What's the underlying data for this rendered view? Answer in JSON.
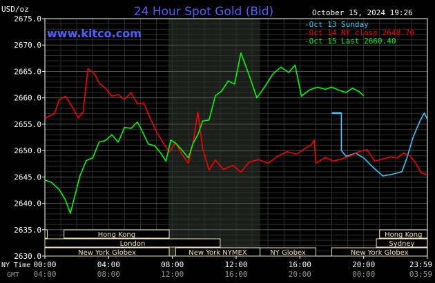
{
  "chart_data": {
    "type": "line",
    "title": "24 Hour Spot Gold (Bid)",
    "unit_label": "USD/oz",
    "watermark": "www.kitco.com",
    "timestamp": "October 15, 2024 19:26",
    "ylim": [
      2630,
      2675
    ],
    "y_ticks": [
      "2675.0",
      "2670.0",
      "2665.0",
      "2660.0",
      "2655.0",
      "2650.0",
      "2645.0",
      "2640.0",
      "2635.0",
      "2630.0"
    ],
    "x_axis": {
      "row1_label": "NY Time",
      "row2_label": "GMT",
      "ny_ticks": [
        "00:00",
        "04:00",
        "08:00",
        "12:00",
        "16:00",
        "20:00",
        "23:59"
      ],
      "gmt_ticks": [
        "04:00",
        "08:00",
        "12:00",
        "16:00",
        "20:00",
        "00:00",
        "03:59"
      ]
    },
    "shaded_session": {
      "from_hour": 7.75,
      "to_hour": 13.5
    },
    "legend": [
      {
        "label": "Oct 13 Sunday",
        "color": "#33ccff"
      },
      {
        "label": "Oct 14 NY close 2648.70",
        "color": "#ff0000"
      },
      {
        "label": "Oct 15 Last 2660.40",
        "color": "#00ff00"
      }
    ],
    "series": [
      {
        "name": "Oct 13 Sunday",
        "color": "#33ccff",
        "x": [
          18.0,
          18.6,
          18.6,
          18.9,
          19.5,
          20.0,
          20.6,
          21.2,
          21.8,
          22.4,
          22.7,
          23.1,
          23.5,
          23.8,
          23.99
        ],
        "y": [
          2657.1,
          2657.1,
          2650.0,
          2648.9,
          2649.5,
          2648.6,
          2646.8,
          2645.2,
          2645.5,
          2646.0,
          2648.5,
          2652.5,
          2655.4,
          2657.1,
          2656.0
        ]
      },
      {
        "name": "Oct 14 NY close 2648.70",
        "color": "#ff0000",
        "x": [
          0.0,
          0.6,
          0.9,
          1.3,
          1.7,
          2.1,
          2.4,
          2.7,
          3.1,
          3.4,
          3.8,
          4.2,
          4.6,
          5.0,
          5.4,
          5.8,
          6.2,
          6.6,
          7.0,
          7.4,
          7.8,
          8.2,
          8.6,
          9.0,
          9.3,
          9.6,
          9.9,
          10.3,
          10.7,
          11.2,
          11.8,
          12.3,
          12.8,
          13.4,
          14.0,
          14.6,
          15.2,
          15.8,
          16.3,
          16.7,
          16.9,
          17.0,
          17.6,
          18.1,
          18.6,
          19.2,
          19.7,
          20.2,
          20.7,
          21.2,
          21.7,
          22.1,
          22.5,
          22.9,
          23.3,
          23.6,
          23.99
        ],
        "y": [
          2656.1,
          2657.0,
          2659.6,
          2660.3,
          2658.4,
          2656.2,
          2657.3,
          2665.5,
          2664.6,
          2662.8,
          2661.8,
          2660.3,
          2660.6,
          2659.7,
          2661.0,
          2658.9,
          2659.0,
          2656.2,
          2653.6,
          2651.6,
          2649.7,
          2651.5,
          2649.3,
          2647.6,
          2651.5,
          2657.3,
          2650.4,
          2646.3,
          2648.2,
          2646.4,
          2647.2,
          2645.9,
          2647.8,
          2648.3,
          2647.6,
          2648.9,
          2649.8,
          2649.3,
          2650.4,
          2651.0,
          2652.0,
          2647.6,
          2648.7,
          2648.0,
          2648.4,
          2649.0,
          2649.8,
          2650.2,
          2648.0,
          2648.4,
          2648.8,
          2648.6,
          2649.5,
          2649.0,
          2647.5,
          2645.8,
          2645.4
        ]
      },
      {
        "name": "Oct 15 Last 2660.40",
        "color": "#00ff00",
        "x": [
          0.0,
          0.4,
          0.9,
          1.3,
          1.6,
          1.9,
          2.2,
          2.6,
          3.0,
          3.4,
          3.8,
          4.2,
          4.6,
          5.0,
          5.4,
          5.8,
          6.1,
          6.5,
          6.9,
          7.3,
          7.6,
          7.9,
          8.2,
          8.6,
          9.0,
          9.3,
          9.6,
          9.9,
          10.3,
          10.7,
          11.1,
          11.5,
          11.9,
          12.3,
          12.8,
          13.3,
          13.8,
          14.3,
          14.8,
          15.3,
          15.7,
          16.1,
          16.6,
          17.1,
          17.6,
          18.0,
          18.5,
          18.9,
          19.3,
          19.7,
          20.0
        ],
        "y": [
          2644.4,
          2644.0,
          2642.6,
          2640.6,
          2638.1,
          2641.7,
          2645.2,
          2648.1,
          2648.6,
          2651.6,
          2651.9,
          2653.0,
          2651.6,
          2654.4,
          2654.2,
          2655.4,
          2653.7,
          2651.2,
          2650.9,
          2649.4,
          2648.0,
          2652.0,
          2651.4,
          2650.1,
          2648.6,
          2651.4,
          2653.0,
          2655.6,
          2655.8,
          2660.4,
          2661.3,
          2663.2,
          2662.6,
          2668.5,
          2664.4,
          2660.0,
          2662.1,
          2664.5,
          2665.8,
          2664.8,
          2666.2,
          2660.3,
          2661.5,
          2662.0,
          2661.6,
          2662.0,
          2661.4,
          2661.0,
          2661.8,
          2661.2,
          2660.4
        ]
      }
    ],
    "session_bars": [
      {
        "row": 1,
        "from": 0.0,
        "to": 0.15,
        "label": ""
      },
      {
        "row": 1,
        "from": 1.2,
        "to": 7.8,
        "label": "Hong Kong"
      },
      {
        "row": 1,
        "from": 21.0,
        "to": 23.99,
        "label": "Hong Kong"
      },
      {
        "row": 2,
        "from": 0.0,
        "to": 11.0,
        "label": "London"
      },
      {
        "row": 2,
        "from": 20.8,
        "to": 23.99,
        "label": "Sydney"
      },
      {
        "row": 3,
        "from": 0.0,
        "to": 7.8,
        "label": "New York Globex"
      },
      {
        "row": 3,
        "from": 8.2,
        "to": 13.5,
        "label": "New York NYMEX"
      },
      {
        "row": 3,
        "from": 13.5,
        "to": 17.0,
        "label": "NY Globex"
      },
      {
        "row": 3,
        "from": 18.0,
        "to": 23.99,
        "label": "New York Globex"
      }
    ],
    "colors": {
      "background": "#000000",
      "frame": "#ffffff",
      "grid": "#2f2f2f",
      "shaded": "#1a1f1a",
      "title": "#4f5fff",
      "watermark": "#4f5fff",
      "session_bar": "#f0e6b4",
      "session_bar_border": "#c8b870",
      "axis_text": "#ffffff",
      "gmt_text": "#9a9a9a"
    }
  }
}
